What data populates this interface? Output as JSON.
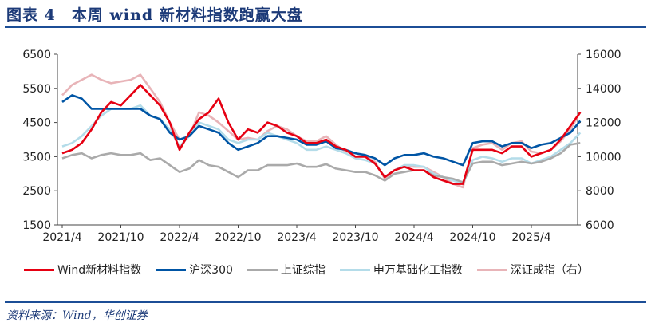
{
  "title": "图表 4　本周 wind 新材料指数跑赢大盘",
  "source": "资料来源：Wind，华创证券",
  "chart_data": {
    "type": "line",
    "x_ticks": [
      "2021/4",
      "2021/10",
      "2022/4",
      "2022/10",
      "2023/4",
      "2023/10",
      "2024/4",
      "2024/10",
      "2025/4"
    ],
    "x": [
      "2021/4",
      "2021/5",
      "2021/6",
      "2021/7",
      "2021/8",
      "2021/9",
      "2021/10",
      "2021/11",
      "2021/12",
      "2022/1",
      "2022/2",
      "2022/3",
      "2022/4",
      "2022/5",
      "2022/6",
      "2022/7",
      "2022/8",
      "2022/9",
      "2022/10",
      "2022/11",
      "2022/12",
      "2023/1",
      "2023/2",
      "2023/3",
      "2023/4",
      "2023/5",
      "2023/6",
      "2023/7",
      "2023/8",
      "2023/9",
      "2023/10",
      "2023/11",
      "2023/12",
      "2024/1",
      "2024/2",
      "2024/3",
      "2024/4",
      "2024/5",
      "2024/6",
      "2024/7",
      "2024/8",
      "2024/9",
      "2024/10",
      "2024/11",
      "2024/12",
      "2025/1",
      "2025/2",
      "2025/3",
      "2025/4",
      "2025/5",
      "2025/6",
      "2025/7",
      "2025/8",
      "2025/9"
    ],
    "y_left": {
      "ticks": [
        1500,
        2500,
        3500,
        4500,
        5500,
        6500
      ],
      "range": [
        1500,
        6500
      ]
    },
    "y_right": {
      "ticks": [
        6000,
        8000,
        10000,
        12000,
        14000,
        16000
      ],
      "range": [
        6000,
        16000
      ]
    },
    "grid": false,
    "legend_position": "bottom",
    "series": [
      {
        "name": "深证成指（右）",
        "axis": "right",
        "color": "#e8b4b8",
        "values": [
          13600,
          14200,
          14500,
          14800,
          14500,
          14300,
          14400,
          14500,
          14800,
          14000,
          13200,
          12000,
          11000,
          11200,
          12600,
          12400,
          12000,
          11500,
          11000,
          11100,
          11000,
          11500,
          11800,
          11600,
          11200,
          10900,
          10900,
          11200,
          10700,
          10300,
          10200,
          10000,
          9700,
          8700,
          9200,
          9500,
          9400,
          9400,
          9100,
          8800,
          8400,
          8200,
          10500,
          10700,
          10800,
          10400,
          10800,
          10900,
          10300,
          10200,
          10400,
          10900,
          11600,
          12600
        ]
      },
      {
        "name": "申万基础化工指数",
        "axis": "left",
        "color": "#b4dce9",
        "values": [
          3800,
          3900,
          4100,
          4400,
          4700,
          4900,
          4900,
          4900,
          5000,
          4700,
          4600,
          4300,
          3800,
          4100,
          4500,
          4400,
          4300,
          4000,
          3900,
          4000,
          4000,
          4200,
          4100,
          4000,
          3900,
          3700,
          3700,
          3800,
          3700,
          3600,
          3450,
          3400,
          3300,
          2900,
          3100,
          3250,
          3250,
          3200,
          3000,
          2900,
          2800,
          2700,
          3400,
          3500,
          3450,
          3350,
          3450,
          3450,
          3300,
          3400,
          3500,
          3700,
          3900,
          4200
        ]
      },
      {
        "name": "上证综指",
        "axis": "left",
        "color": "#aaaaaa",
        "values": [
          3450,
          3550,
          3600,
          3450,
          3550,
          3600,
          3550,
          3550,
          3600,
          3400,
          3450,
          3250,
          3050,
          3150,
          3400,
          3250,
          3200,
          3050,
          2900,
          3100,
          3100,
          3250,
          3250,
          3250,
          3300,
          3200,
          3200,
          3280,
          3150,
          3100,
          3050,
          3050,
          2950,
          2800,
          3000,
          3050,
          3100,
          3100,
          2950,
          2900,
          2850,
          2750,
          3300,
          3350,
          3350,
          3250,
          3300,
          3350,
          3300,
          3350,
          3450,
          3600,
          3850,
          3900
        ]
      },
      {
        "name": "沪深300",
        "axis": "left",
        "color": "#0055a5",
        "values": [
          5100,
          5300,
          5200,
          4900,
          4900,
          4900,
          4900,
          4900,
          4900,
          4700,
          4600,
          4200,
          4000,
          4100,
          4400,
          4300,
          4200,
          3900,
          3700,
          3800,
          3900,
          4100,
          4100,
          4050,
          4000,
          3850,
          3850,
          3950,
          3750,
          3700,
          3600,
          3550,
          3450,
          3250,
          3450,
          3550,
          3550,
          3600,
          3500,
          3450,
          3350,
          3250,
          3900,
          3950,
          3950,
          3800,
          3900,
          3900,
          3750,
          3850,
          3900,
          4050,
          4200,
          4550
        ]
      },
      {
        "name": "Wind新材料指数",
        "axis": "left",
        "color": "#e60012",
        "values": [
          3600,
          3700,
          3900,
          4300,
          4800,
          5100,
          5000,
          5300,
          5600,
          5300,
          5000,
          4500,
          3700,
          4200,
          4600,
          4800,
          5200,
          4500,
          4000,
          4300,
          4200,
          4500,
          4400,
          4200,
          4100,
          3900,
          3900,
          4000,
          3800,
          3700,
          3500,
          3500,
          3300,
          2900,
          3100,
          3200,
          3100,
          3100,
          2900,
          2800,
          2700,
          2700,
          3700,
          3700,
          3700,
          3600,
          3800,
          3800,
          3500,
          3600,
          3700,
          4000,
          4400,
          4800
        ]
      }
    ],
    "legend_order": [
      "Wind新材料指数",
      "沪深300",
      "上证综指",
      "申万基础化工指数",
      "深证成指（右）"
    ]
  }
}
